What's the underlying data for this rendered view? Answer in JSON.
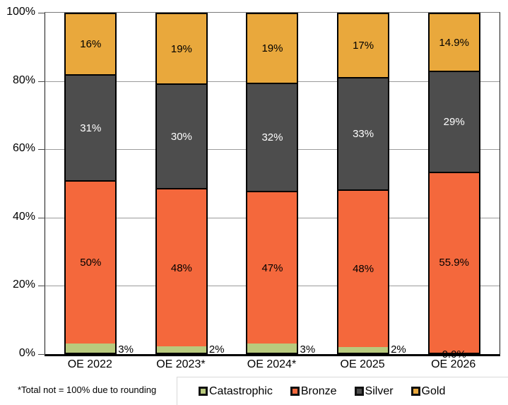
{
  "chart_data": {
    "type": "bar",
    "stacked": true,
    "categories": [
      "OE 2022",
      "OE 2023*",
      "OE 2024*",
      "OE 2025",
      "OE 2026"
    ],
    "series": [
      {
        "name": "Catastrophic",
        "color": "#B9CA7D",
        "values": [
          3,
          2,
          3,
          2,
          0
        ],
        "labels": [
          "3%",
          "2%",
          "3%",
          "2%",
          "0.0%"
        ],
        "label_color": "#000000",
        "label_placement": "outside"
      },
      {
        "name": "Bronze",
        "color": "#F4683C",
        "values": [
          50,
          48,
          47,
          48,
          55.9
        ],
        "labels": [
          "50%",
          "48%",
          "47%",
          "48%",
          "55.9%"
        ],
        "label_color": "#000000",
        "label_placement": "inside"
      },
      {
        "name": "Silver",
        "color": "#4D4D4D",
        "values": [
          31,
          30,
          32,
          33,
          29
        ],
        "labels": [
          "31%",
          "30%",
          "32%",
          "33%",
          "29%"
        ],
        "label_color": "#FFFFFF",
        "label_placement": "inside"
      },
      {
        "name": "Gold",
        "color": "#E9A83C",
        "values": [
          16,
          19,
          19,
          17,
          14.9
        ],
        "labels": [
          "16%",
          "19%",
          "19%",
          "17%",
          "14.9%"
        ],
        "label_color": "#000000",
        "label_placement": "inside"
      }
    ],
    "y_axis": {
      "tick_labels": [
        "0%",
        "20%",
        "40%",
        "60%",
        "80%",
        "100%"
      ],
      "tick_values": [
        0,
        20,
        40,
        60,
        80,
        100
      ],
      "min": 0,
      "max": 100,
      "grid": true
    },
    "legend": {
      "position": "bottom",
      "items": [
        "Catastrophic",
        "Bronze",
        "Silver",
        "Gold"
      ]
    },
    "footnote": "*Total not = 100% due to rounding"
  }
}
